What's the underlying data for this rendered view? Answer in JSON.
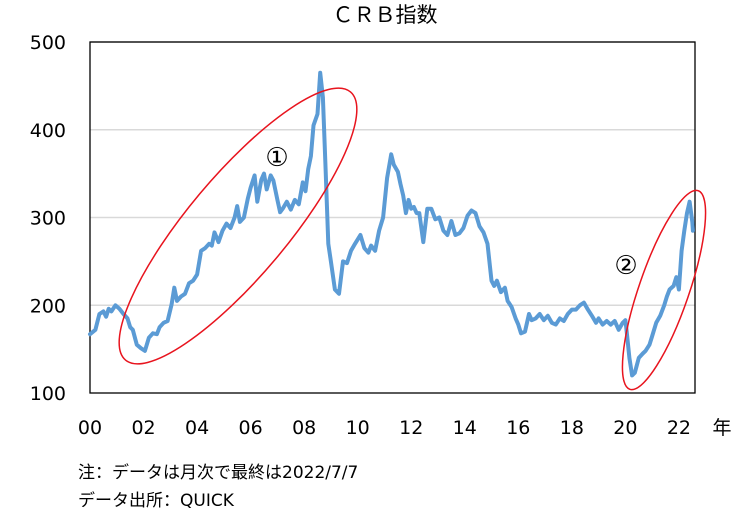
{
  "chart_data": {
    "type": "line",
    "title": "ＣＲＢ指数",
    "xlabel": "年",
    "ylabel": "",
    "ylim": [
      100,
      500
    ],
    "xlim": [
      2000.0,
      2022.6
    ],
    "yticks": [
      100,
      200,
      300,
      400,
      500
    ],
    "xticks": [
      {
        "value": 2000,
        "label": "00"
      },
      {
        "value": 2002,
        "label": "02"
      },
      {
        "value": 2004,
        "label": "04"
      },
      {
        "value": 2006,
        "label": "06"
      },
      {
        "value": 2008,
        "label": "08"
      },
      {
        "value": 2010,
        "label": "10"
      },
      {
        "value": 2012,
        "label": "12"
      },
      {
        "value": 2014,
        "label": "14"
      },
      {
        "value": 2016,
        "label": "16"
      },
      {
        "value": 2018,
        "label": "18"
      },
      {
        "value": 2020,
        "label": "20"
      },
      {
        "value": 2022,
        "label": "22"
      }
    ],
    "grid": "horizontal",
    "series": [
      {
        "name": "",
        "color": "#5b9bd5",
        "points": [
          [
            2000.0,
            167
          ],
          [
            2000.2,
            172
          ],
          [
            2000.35,
            190
          ],
          [
            2000.5,
            193
          ],
          [
            2000.6,
            187
          ],
          [
            2000.7,
            196
          ],
          [
            2000.8,
            193
          ],
          [
            2000.95,
            200
          ],
          [
            2001.1,
            196
          ],
          [
            2001.25,
            190
          ],
          [
            2001.4,
            185
          ],
          [
            2001.5,
            175
          ],
          [
            2001.6,
            172
          ],
          [
            2001.75,
            155
          ],
          [
            2001.9,
            151
          ],
          [
            2002.05,
            148
          ],
          [
            2002.2,
            163
          ],
          [
            2002.35,
            168
          ],
          [
            2002.5,
            167
          ],
          [
            2002.6,
            175
          ],
          [
            2002.75,
            180
          ],
          [
            2002.9,
            182
          ],
          [
            2003.05,
            201
          ],
          [
            2003.15,
            220
          ],
          [
            2003.25,
            205
          ],
          [
            2003.4,
            210
          ],
          [
            2003.55,
            213
          ],
          [
            2003.7,
            225
          ],
          [
            2003.85,
            228
          ],
          [
            2004.0,
            235
          ],
          [
            2004.15,
            262
          ],
          [
            2004.3,
            265
          ],
          [
            2004.45,
            270
          ],
          [
            2004.55,
            268
          ],
          [
            2004.65,
            283
          ],
          [
            2004.8,
            272
          ],
          [
            2004.95,
            285
          ],
          [
            2005.1,
            293
          ],
          [
            2005.25,
            288
          ],
          [
            2005.4,
            300
          ],
          [
            2005.5,
            313
          ],
          [
            2005.6,
            295
          ],
          [
            2005.75,
            300
          ],
          [
            2005.9,
            322
          ],
          [
            2006.0,
            334
          ],
          [
            2006.15,
            348
          ],
          [
            2006.25,
            318
          ],
          [
            2006.4,
            343
          ],
          [
            2006.5,
            350
          ],
          [
            2006.6,
            332
          ],
          [
            2006.75,
            348
          ],
          [
            2006.85,
            342
          ],
          [
            2007.0,
            320
          ],
          [
            2007.1,
            306
          ],
          [
            2007.2,
            310
          ],
          [
            2007.35,
            318
          ],
          [
            2007.5,
            309
          ],
          [
            2007.65,
            320
          ],
          [
            2007.8,
            315
          ],
          [
            2007.95,
            340
          ],
          [
            2008.05,
            330
          ],
          [
            2008.15,
            355
          ],
          [
            2008.25,
            370
          ],
          [
            2008.35,
            405
          ],
          [
            2008.5,
            418
          ],
          [
            2008.6,
            465
          ],
          [
            2008.7,
            437
          ],
          [
            2008.8,
            355
          ],
          [
            2008.9,
            270
          ],
          [
            2009.0,
            250
          ],
          [
            2009.15,
            218
          ],
          [
            2009.3,
            213
          ],
          [
            2009.45,
            250
          ],
          [
            2009.6,
            248
          ],
          [
            2009.75,
            262
          ],
          [
            2009.9,
            270
          ],
          [
            2010.0,
            275
          ],
          [
            2010.1,
            280
          ],
          [
            2010.25,
            265
          ],
          [
            2010.4,
            260
          ],
          [
            2010.5,
            268
          ],
          [
            2010.65,
            262
          ],
          [
            2010.8,
            285
          ],
          [
            2010.95,
            300
          ],
          [
            2011.1,
            345
          ],
          [
            2011.25,
            372
          ],
          [
            2011.35,
            360
          ],
          [
            2011.5,
            352
          ],
          [
            2011.6,
            338
          ],
          [
            2011.7,
            325
          ],
          [
            2011.8,
            305
          ],
          [
            2011.9,
            320
          ],
          [
            2012.0,
            310
          ],
          [
            2012.1,
            312
          ],
          [
            2012.2,
            305
          ],
          [
            2012.3,
            305
          ],
          [
            2012.45,
            272
          ],
          [
            2012.6,
            310
          ],
          [
            2012.75,
            310
          ],
          [
            2012.9,
            298
          ],
          [
            2013.05,
            300
          ],
          [
            2013.2,
            285
          ],
          [
            2013.35,
            280
          ],
          [
            2013.5,
            296
          ],
          [
            2013.65,
            280
          ],
          [
            2013.8,
            282
          ],
          [
            2013.95,
            288
          ],
          [
            2014.1,
            302
          ],
          [
            2014.25,
            308
          ],
          [
            2014.4,
            305
          ],
          [
            2014.55,
            290
          ],
          [
            2014.7,
            283
          ],
          [
            2014.85,
            270
          ],
          [
            2015.0,
            228
          ],
          [
            2015.1,
            222
          ],
          [
            2015.2,
            228
          ],
          [
            2015.35,
            215
          ],
          [
            2015.5,
            220
          ],
          [
            2015.6,
            205
          ],
          [
            2015.75,
            198
          ],
          [
            2015.9,
            185
          ],
          [
            2016.0,
            178
          ],
          [
            2016.1,
            168
          ],
          [
            2016.25,
            170
          ],
          [
            2016.4,
            190
          ],
          [
            2016.5,
            183
          ],
          [
            2016.65,
            185
          ],
          [
            2016.8,
            190
          ],
          [
            2016.95,
            183
          ],
          [
            2017.1,
            188
          ],
          [
            2017.25,
            180
          ],
          [
            2017.4,
            178
          ],
          [
            2017.55,
            185
          ],
          [
            2017.7,
            182
          ],
          [
            2017.85,
            190
          ],
          [
            2018.0,
            195
          ],
          [
            2018.15,
            195
          ],
          [
            2018.3,
            200
          ],
          [
            2018.45,
            203
          ],
          [
            2018.6,
            195
          ],
          [
            2018.75,
            188
          ],
          [
            2018.9,
            180
          ],
          [
            2019.0,
            185
          ],
          [
            2019.15,
            178
          ],
          [
            2019.3,
            182
          ],
          [
            2019.45,
            178
          ],
          [
            2019.6,
            182
          ],
          [
            2019.75,
            172
          ],
          [
            2019.9,
            180
          ],
          [
            2020.0,
            183
          ],
          [
            2020.05,
            170
          ],
          [
            2020.15,
            140
          ],
          [
            2020.25,
            120
          ],
          [
            2020.35,
            123
          ],
          [
            2020.5,
            140
          ],
          [
            2020.65,
            145
          ],
          [
            2020.75,
            148
          ],
          [
            2020.9,
            155
          ],
          [
            2021.0,
            165
          ],
          [
            2021.15,
            180
          ],
          [
            2021.3,
            188
          ],
          [
            2021.45,
            200
          ],
          [
            2021.55,
            210
          ],
          [
            2021.65,
            218
          ],
          [
            2021.8,
            222
          ],
          [
            2021.9,
            232
          ],
          [
            2022.0,
            218
          ],
          [
            2022.1,
            262
          ],
          [
            2022.2,
            285
          ],
          [
            2022.3,
            305
          ],
          [
            2022.4,
            318
          ],
          [
            2022.5,
            295
          ],
          [
            2022.52,
            285
          ]
        ]
      }
    ],
    "annotations": [
      {
        "type": "ellipse",
        "label": "①",
        "color": "#e8141e"
      },
      {
        "type": "ellipse",
        "label": "②",
        "color": "#e8141e"
      }
    ]
  },
  "notes": {
    "note1": "注：データは月次で最終は2022/7/7",
    "note2": "データ出所：QUICK"
  }
}
